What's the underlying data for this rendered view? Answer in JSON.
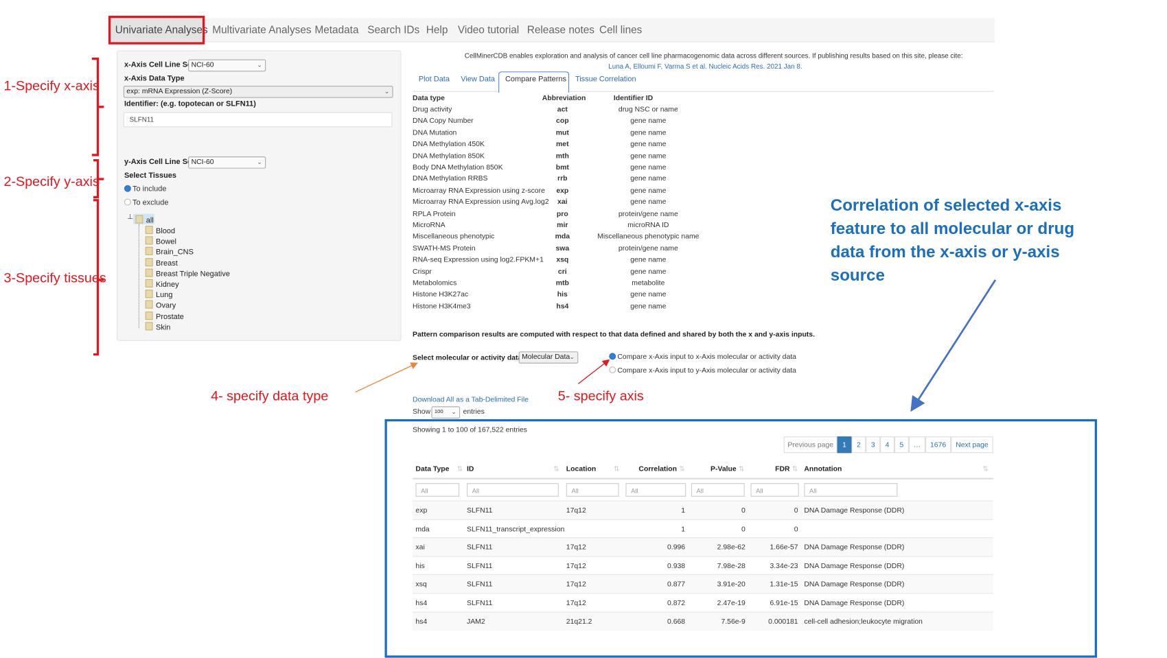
{
  "nav": {
    "items": [
      "Univariate Analyses",
      "Multivariate Analyses",
      "Metadata",
      "Search IDs",
      "Help",
      "Video tutorial",
      "Release notes",
      "Cell lines"
    ],
    "active": "Univariate Analyses"
  },
  "left_panel": {
    "x_cell_line_label": "x-Axis Cell Line Set",
    "x_cell_line_value": "NCI-60",
    "x_data_type_label": "x-Axis Data Type",
    "x_data_type_value": "exp: mRNA Expression (Z-Score)",
    "identifier_label": "Identifier: (e.g. topotecan or SLFN11)",
    "identifier_value": "SLFN11",
    "y_cell_line_label": "y-Axis Cell Line Set",
    "y_cell_line_value": "NCI-60",
    "select_tissues_label": "Select Tissues",
    "to_include": "To include",
    "to_exclude": "To exclude",
    "tree_root": "all",
    "tissues": [
      "Blood",
      "Bowel",
      "Brain_CNS",
      "Breast",
      "Breast Triple Negative",
      "Kidney",
      "Lung",
      "Ovary",
      "Prostate",
      "Skin"
    ]
  },
  "intro": {
    "text": "CellMinerCDB enables exploration and analysis of cancer cell line pharmacogenomic data across different sources. If publishing results based on this site, please cite:",
    "citation": "Luna A, Elloumi F, Varma S et al. Nucleic Acids Res. 2021 Jan 8."
  },
  "tabs": [
    "Plot Data",
    "View Data",
    "Compare Patterns",
    "Tissue Correlation"
  ],
  "active_tab": "Compare Patterns",
  "data_types": {
    "headers": [
      "Data type",
      "Abbreviation",
      "Identifier ID"
    ],
    "rows": [
      [
        "Drug activity",
        "act",
        "drug NSC or name"
      ],
      [
        "DNA Copy Number",
        "cop",
        "gene name"
      ],
      [
        "DNA Mutation",
        "mut",
        "gene name"
      ],
      [
        "DNA Methylation 450K",
        "met",
        "gene name"
      ],
      [
        "DNA Methylation 850K",
        "mth",
        "gene name"
      ],
      [
        "Body DNA Methylation 850K",
        "bmt",
        "gene name"
      ],
      [
        "DNA Methylation RRBS",
        "rrb",
        "gene name"
      ],
      [
        "Microarray RNA Expression using z-score",
        "exp",
        "gene name"
      ],
      [
        "Microarray RNA Expression using Avg.log2",
        "xai",
        "gene name"
      ],
      [
        "RPLA Protein",
        "pro",
        "protein/gene name"
      ],
      [
        "MicroRNA",
        "mir",
        "microRNA ID"
      ],
      [
        "Miscellaneous phenotypic",
        "mda",
        "Miscellaneous phenotypic name"
      ],
      [
        "SWATH-MS Protein",
        "swa",
        "protein/gene name"
      ],
      [
        "RNA-seq Expression using log2.FPKM+1",
        "xsq",
        "gene name"
      ],
      [
        "Crispr",
        "cri",
        "gene name"
      ],
      [
        "Metabolomics",
        "mtb",
        "metabolite"
      ],
      [
        "Histone H3K27ac",
        "his",
        "gene name"
      ],
      [
        "Histone H3K4me3",
        "hs4",
        "gene name"
      ]
    ]
  },
  "pattern_note": "Pattern comparison results are computed with respect to that data defined and shared by both the x and y-axis inputs.",
  "select_data_label": "Select molecular or activity data",
  "select_data_value": "Molecular Data",
  "compare_options": [
    "Compare x-Axis input to x-Axis molecular or activity data",
    "Compare x-Axis input to y-Axis molecular or activity data"
  ],
  "download_link": "Download All as a Tab-Delimited File",
  "show_label": "Show",
  "show_value": "100",
  "entries_label": "entries",
  "showing_text": "Showing 1 to 100 of 167,522 entries",
  "pagination": {
    "prev": "Previous page",
    "pages": [
      "1",
      "2",
      "3",
      "4",
      "5",
      "…",
      "1676"
    ],
    "current": "1",
    "next": "Next page"
  },
  "results": {
    "headers": [
      "Data Type",
      "ID",
      "Location",
      "Correlation",
      "P-Value",
      "FDR",
      "Annotation"
    ],
    "filter_placeholder": "All",
    "rows": [
      [
        "exp",
        "SLFN11",
        "17q12",
        "1",
        "0",
        "0",
        "DNA Damage Response (DDR)"
      ],
      [
        "mda",
        "SLFN11_transcript_expression",
        "",
        "1",
        "0",
        "0",
        ""
      ],
      [
        "xai",
        "SLFN11",
        "17q12",
        "0.996",
        "2.98e-62",
        "1.66e-57",
        "DNA Damage Response (DDR)"
      ],
      [
        "his",
        "SLFN11",
        "17q12",
        "0.938",
        "7.98e-28",
        "3.34e-23",
        "DNA Damage Response (DDR)"
      ],
      [
        "xsq",
        "SLFN11",
        "17q12",
        "0.877",
        "3.91e-20",
        "1.31e-15",
        "DNA Damage Response (DDR)"
      ],
      [
        "hs4",
        "SLFN11",
        "17q12",
        "0.872",
        "2.47e-19",
        "6.91e-15",
        "DNA Damage Response (DDR)"
      ],
      [
        "hs4",
        "JAM2",
        "21q21.2",
        "0.668",
        "7.56e-9",
        "0.000181",
        "cell-cell adhesion;leukocyte migration"
      ]
    ]
  },
  "annotations": {
    "step1": "1-Specify x-axis",
    "step2": "2-Specify y-axis",
    "step3": "3-Specify tissues",
    "step4": "4- specify data type",
    "step5": "5- specify axis",
    "note": "Correlation of selected x-axis feature to all molecular or drug data from the x-axis or y-axis source"
  },
  "colors": {
    "annotation_red": "#e8141b",
    "annotation_blue": "#1a6fc0",
    "arrow_orange": "#e8863a",
    "link": "#2a6fb5",
    "page_active": "#337ab7"
  }
}
